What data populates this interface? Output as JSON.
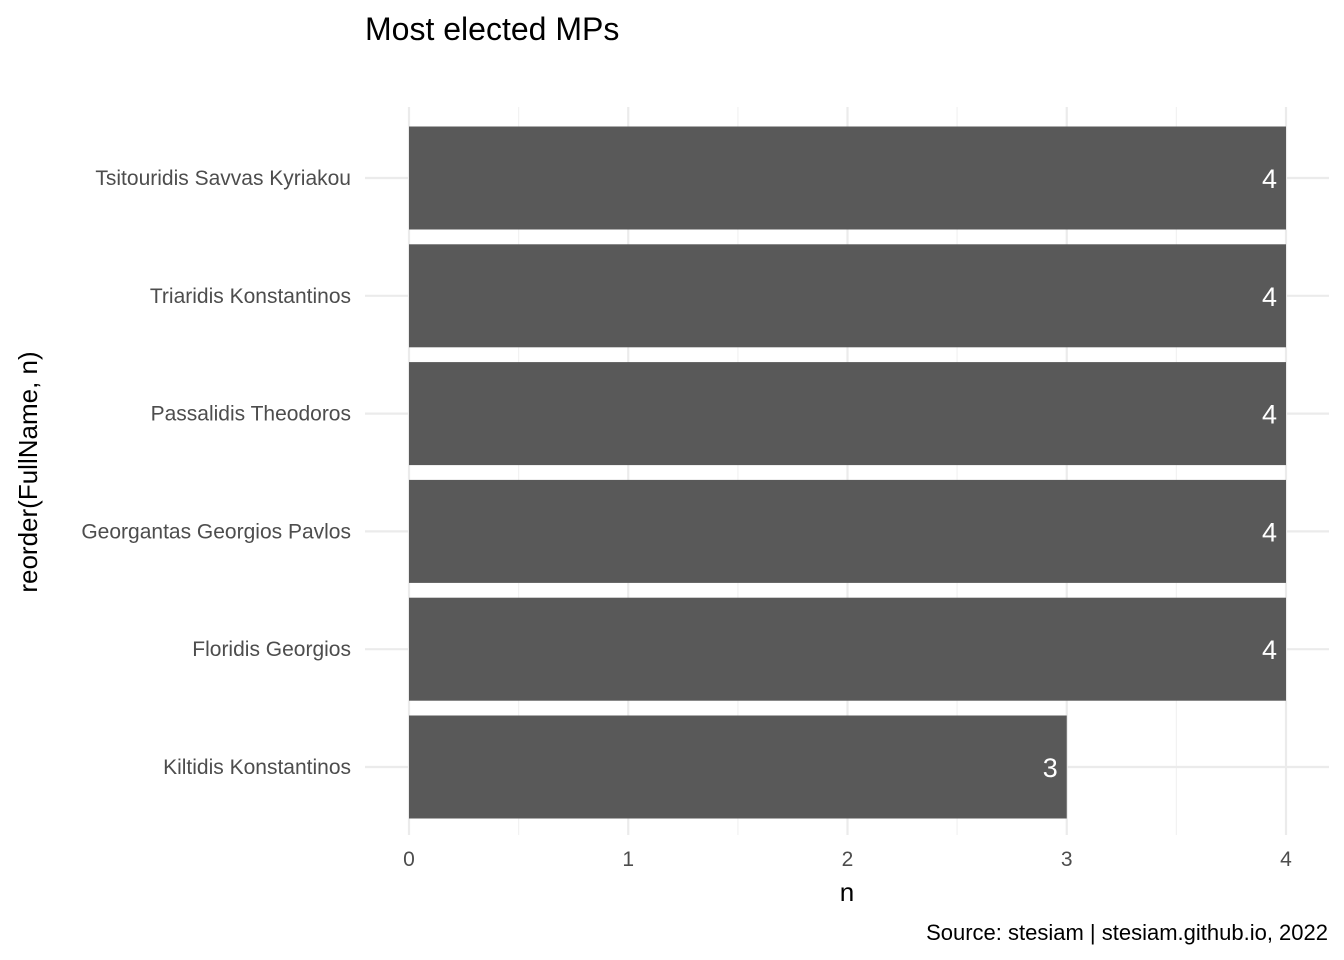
{
  "chart_data": {
    "type": "bar",
    "orientation": "horizontal",
    "title": "Most elected MPs",
    "xlabel": "n",
    "ylabel": "reorder(FullName, n)",
    "caption": "Source: stesiam | stesiam.github.io, 2022",
    "categories": [
      "Tsitouridis Savvas Kyriakou",
      "Triaridis Konstantinos",
      "Passalidis Theodoros",
      "Georgantas Georgios Pavlos",
      "Floridis Georgios",
      "Kiltidis Konstantinos"
    ],
    "values": [
      4,
      4,
      4,
      4,
      4,
      3
    ],
    "xlim": [
      0,
      4
    ],
    "x_ticks": [
      0,
      1,
      2,
      3,
      4
    ],
    "bar_color": "#595959",
    "label_color": "#ffffff",
    "grid": true,
    "legend": "none"
  }
}
